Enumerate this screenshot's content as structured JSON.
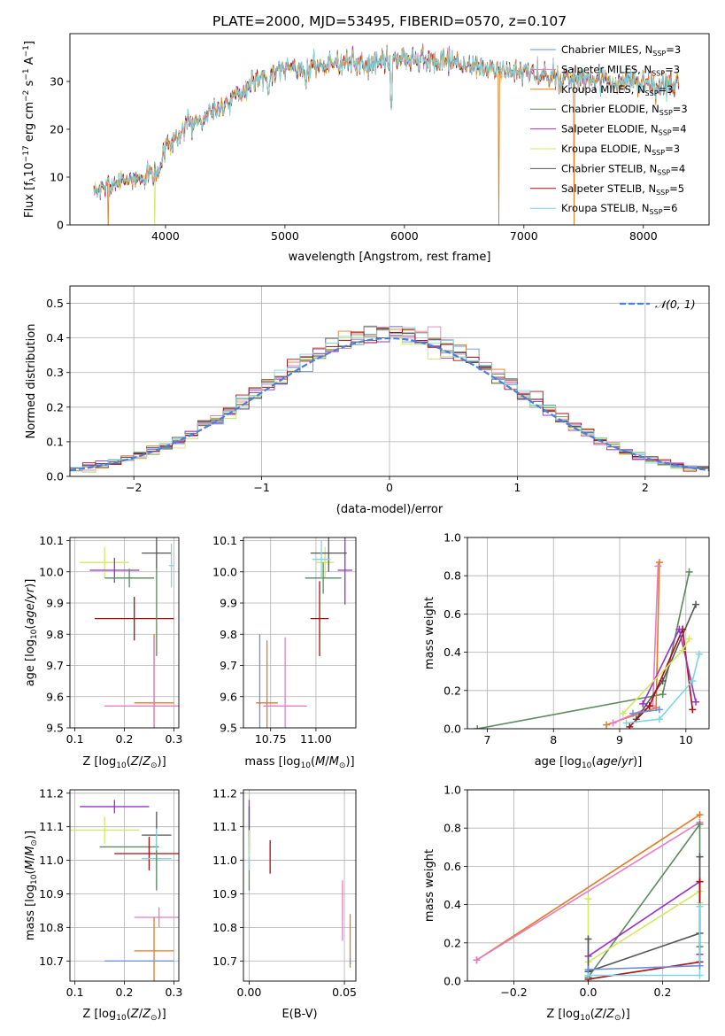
{
  "figure": {
    "title": "PLATE=2000, MJD=53495, FIBERID=0570, z=0.107"
  },
  "colors": {
    "chabrier_miles": "#6a8fdc",
    "salpeter_miles": "#e77cc2",
    "kroupa_miles": "#e07b26",
    "chabrier_elodie": "#5a8a5e",
    "salpeter_elodie": "#9b30c8",
    "kroupa_elodie": "#d3e860",
    "chabrier_stelib": "#555555",
    "salpeter_stelib": "#a80d12",
    "kroupa_stelib": "#7fd6e0",
    "normal_curve": "#4a7fd8",
    "grid": "#b0b0b0"
  },
  "chart_data": [
    {
      "id": "spectrum",
      "type": "line",
      "xlabel": "wavelength [Angstrom, rest frame]",
      "ylabel": "Flux [fλ10^-17 erg cm^-2 s^-1 A^-1]",
      "xlim": [
        3200,
        8550
      ],
      "ylim": [
        0,
        40
      ],
      "xticks": [
        4000,
        5000,
        6000,
        7000,
        8000
      ],
      "yticks": [
        0,
        10,
        20,
        30
      ],
      "grid": false,
      "legend_position": "right",
      "legend": [
        "Chabrier MILES, N_SSP=3",
        "Salpeter MILES, N_SSP=3",
        "Kroupa MILES, N_SSP=3",
        "Chabrier ELODIE, N_SSP=3",
        "Salpeter ELODIE, N_SSP=4",
        "Kroupa ELODIE, N_SSP=3",
        "Chabrier STELIB, N_SSP=4",
        "Salpeter STELIB, N_SSP=5",
        "Kroupa STELIB, N_SSP=6"
      ],
      "series_colors": [
        "chabrier_miles",
        "salpeter_miles",
        "kroupa_miles",
        "chabrier_elodie",
        "salpeter_elodie",
        "kroupa_elodie",
        "chabrier_stelib",
        "salpeter_stelib",
        "kroupa_stelib"
      ],
      "continuum_x": [
        3400,
        3600,
        3800,
        3950,
        4000,
        4200,
        4400,
        4600,
        4800,
        5000,
        5200,
        5500,
        5800,
        6000,
        6300,
        6600,
        6900,
        7200,
        7500,
        7800,
        8100,
        8300
      ],
      "continuum_y": [
        7,
        9,
        10,
        11,
        17,
        21,
        24,
        27,
        31,
        33,
        33,
        34,
        34,
        35,
        34,
        33,
        32,
        31,
        30,
        30,
        29,
        29
      ],
      "features": [
        {
          "x": 3934,
          "y": 13
        },
        {
          "x": 3969,
          "y": 14
        },
        {
          "x": 4101,
          "y": 16
        },
        {
          "x": 4304,
          "y": 20
        },
        {
          "x": 4861,
          "y": 26
        },
        {
          "x": 5175,
          "y": 28
        },
        {
          "x": 5890,
          "y": 24
        },
        {
          "x": 6563,
          "y": 31
        }
      ],
      "drops": [
        {
          "x": 3520,
          "series": 2
        },
        {
          "x": 3910,
          "series": 5
        },
        {
          "x": 6790,
          "series": 2
        },
        {
          "x": 6790,
          "series": 5
        },
        {
          "x": 7420,
          "series": 2
        }
      ]
    },
    {
      "id": "residuals",
      "type": "line",
      "xlabel": "(data-model)/error",
      "ylabel": "Normed distribution",
      "xlim": [
        -2.5,
        2.5
      ],
      "ylim": [
        0,
        0.55
      ],
      "xticks": [
        -2,
        -1,
        0,
        1,
        2
      ],
      "yticks": [
        0.0,
        0.1,
        0.2,
        0.3,
        0.4,
        0.5
      ],
      "grid": true,
      "legend_position": "top-right",
      "legend": [
        "N(0,1)"
      ],
      "series_colors": [
        "chabrier_miles",
        "salpeter_miles",
        "kroupa_miles",
        "chabrier_elodie",
        "salpeter_elodie",
        "kroupa_elodie",
        "chabrier_stelib",
        "salpeter_stelib",
        "kroupa_stelib"
      ],
      "bin_width": 0.1,
      "normal_mean": 0,
      "normal_sigma": 1
    },
    {
      "id": "age_vs_Z",
      "type": "scatter",
      "xlabel": "Z [log10(Z/Z☉)]",
      "ylabel": "age [log10(age/yr)]",
      "xlim": [
        0.09,
        0.31
      ],
      "ylim": [
        9.5,
        10.11
      ],
      "xticks": [
        0.1,
        0.2,
        0.3
      ],
      "yticks": [
        9.5,
        9.6,
        9.7,
        9.8,
        9.9,
        10.0,
        10.1
      ],
      "grid": true,
      "points": [
        {
          "x": 0.16,
          "y": 10.03,
          "xerr": 0.05,
          "yerr": 0.05,
          "c": "kroupa_elodie"
        },
        {
          "x": 0.18,
          "y": 10.005,
          "xerr": 0.05,
          "yerr": 0.04,
          "c": "salpeter_elodie"
        },
        {
          "x": 0.21,
          "y": 9.98,
          "xerr": 0.05,
          "yerr": 0.03,
          "c": "chabrier_elodie"
        },
        {
          "x": 0.265,
          "y": 10.06,
          "xerr": 0.03,
          "yerr": 0.05,
          "c": "chabrier_stelib"
        },
        {
          "x": 0.295,
          "y": 10.02,
          "xerr": 0.005,
          "yerr": 0.07,
          "c": "kroupa_stelib"
        },
        {
          "x": 0.22,
          "y": 9.85,
          "xerr": 0.08,
          "yerr": 0.07,
          "c": "salpeter_stelib"
        },
        {
          "x": 0.26,
          "y": 9.58,
          "xerr": 0.04,
          "yerr": 0.22,
          "c": "kroupa_miles"
        },
        {
          "x": 0.26,
          "y": 9.57,
          "xerr": 0.1,
          "yerr": 0.22,
          "c": "salpeter_miles"
        },
        {
          "x": 0.265,
          "y": 9.87,
          "xerr": 0.0,
          "yerr": 0.14,
          "c": "chabrier_elodie"
        }
      ]
    },
    {
      "id": "age_vs_mass",
      "type": "scatter",
      "xlabel": "mass [log10(M/M☉)]",
      "ylabel": "",
      "xlim": [
        10.6,
        11.22
      ],
      "ylim": [
        9.5,
        10.11
      ],
      "xticks": [
        10.75,
        11.0
      ],
      "xticklabels": [
        "10.75",
        "11.00"
      ],
      "yticks": [
        9.5,
        9.6,
        9.7,
        9.8,
        9.9,
        10.0,
        10.1
      ],
      "grid": true,
      "points": [
        {
          "x": 11.05,
          "y": 10.03,
          "xerr": 0.05,
          "yerr": 0.05,
          "c": "kroupa_elodie"
        },
        {
          "x": 11.16,
          "y": 10.005,
          "xerr": 0.04,
          "yerr": 0.11,
          "c": "salpeter_elodie"
        },
        {
          "x": 11.04,
          "y": 9.98,
          "xerr": 0.1,
          "yerr": 0.05,
          "c": "chabrier_elodie"
        },
        {
          "x": 11.07,
          "y": 10.06,
          "xerr": 0.1,
          "yerr": 0.06,
          "c": "chabrier_stelib"
        },
        {
          "x": 11.03,
          "y": 10.04,
          "xerr": 0.05,
          "yerr": 0.06,
          "c": "kroupa_stelib"
        },
        {
          "x": 11.02,
          "y": 9.85,
          "xerr": 0.05,
          "yerr": 0.12,
          "c": "salpeter_stelib"
        },
        {
          "x": 10.73,
          "y": 9.58,
          "xerr": 0.06,
          "yerr": 0.2,
          "c": "kroupa_miles"
        },
        {
          "x": 10.83,
          "y": 9.57,
          "xerr": 0.12,
          "yerr": 0.22,
          "c": "salpeter_miles"
        },
        {
          "x": 10.69,
          "y": 9.57,
          "xerr": 0.0,
          "yerr": 0.23,
          "c": "chabrier_miles"
        }
      ]
    },
    {
      "id": "weight_vs_age",
      "type": "line",
      "xlabel": "age [log10(age/yr)]",
      "ylabel": "mass weight",
      "xlim": [
        6.7,
        10.35
      ],
      "ylim": [
        0,
        1.0
      ],
      "xticks": [
        7,
        8,
        9,
        10
      ],
      "yticks": [
        0.0,
        0.2,
        0.4,
        0.6,
        0.8,
        1.0
      ],
      "grid": true,
      "series": [
        {
          "c": "chabrier_elodie",
          "x": [
            6.85,
            9.65,
            10.05
          ],
          "y": [
            0.0,
            0.18,
            0.82
          ]
        },
        {
          "c": "kroupa_miles",
          "x": [
            8.8,
            9.55,
            9.6
          ],
          "y": [
            0.02,
            0.11,
            0.87
          ]
        },
        {
          "c": "salpeter_miles",
          "x": [
            8.9,
            9.5,
            9.58
          ],
          "y": [
            0.03,
            0.12,
            0.85
          ]
        },
        {
          "c": "chabrier_stelib",
          "x": [
            9.25,
            9.65,
            10.15
          ],
          "y": [
            0.05,
            0.25,
            0.65
          ]
        },
        {
          "c": "salpeter_stelib",
          "x": [
            9.15,
            9.45,
            9.95,
            10.1
          ],
          "y": [
            0.01,
            0.12,
            0.52,
            0.1
          ]
        },
        {
          "c": "salpeter_elodie",
          "x": [
            9.35,
            9.9,
            10.15
          ],
          "y": [
            0.13,
            0.52,
            0.14
          ]
        },
        {
          "c": "kroupa_elodie",
          "x": [
            9.05,
            9.95,
            10.05
          ],
          "y": [
            0.08,
            0.41,
            0.47
          ]
        },
        {
          "c": "kroupa_stelib",
          "x": [
            9.1,
            9.6,
            10.1,
            10.2
          ],
          "y": [
            0.03,
            0.05,
            0.25,
            0.39
          ]
        },
        {
          "c": "chabrier_miles",
          "x": [
            9.2,
            9.6
          ],
          "y": [
            0.08,
            0.1
          ]
        }
      ]
    },
    {
      "id": "mass_vs_Z",
      "type": "scatter",
      "xlabel": "Z [log10(Z/Z☉)]",
      "ylabel": "mass [log10(M/M☉)]",
      "xlim": [
        0.09,
        0.31
      ],
      "ylim": [
        10.64,
        11.21
      ],
      "xticks": [
        0.1,
        0.2,
        0.3
      ],
      "yticks": [
        10.7,
        10.8,
        10.9,
        11.0,
        11.1,
        11.2
      ],
      "grid": true,
      "points": [
        {
          "x": 0.18,
          "y": 11.16,
          "xerr": 0.07,
          "yerr": 0.02,
          "c": "salpeter_elodie"
        },
        {
          "x": 0.16,
          "y": 11.09,
          "xerr": 0.07,
          "yerr": 0.04,
          "c": "kroupa_elodie"
        },
        {
          "x": 0.265,
          "y": 11.075,
          "xerr": 0.03,
          "yerr": 0.07,
          "c": "chabrier_stelib"
        },
        {
          "x": 0.21,
          "y": 11.04,
          "xerr": 0.06,
          "yerr": 0.0,
          "c": "chabrier_elodie"
        },
        {
          "x": 0.25,
          "y": 11.02,
          "xerr": 0.07,
          "yerr": 0.05,
          "c": "salpeter_stelib"
        },
        {
          "x": 0.265,
          "y": 11.005,
          "xerr": 0.03,
          "yerr": 0.09,
          "c": "kroupa_stelib"
        },
        {
          "x": 0.265,
          "y": 10.97,
          "xerr": 0.0,
          "yerr": 0.06,
          "c": "chabrier_elodie"
        },
        {
          "x": 0.27,
          "y": 10.83,
          "xerr": 0.05,
          "yerr": 0.03,
          "c": "salpeter_miles"
        },
        {
          "x": 0.26,
          "y": 10.73,
          "xerr": 0.04,
          "yerr": 0.1,
          "c": "kroupa_miles"
        },
        {
          "x": 0.23,
          "y": 10.7,
          "xerr": 0.07,
          "yerr": 0.0,
          "c": "chabrier_miles"
        }
      ]
    },
    {
      "id": "mass_vs_ebv",
      "type": "scatter",
      "xlabel": "E(B-V)",
      "ylabel": "",
      "xlim": [
        -0.003,
        0.056
      ],
      "ylim": [
        10.64,
        11.21
      ],
      "xticks": [
        0.0,
        0.05
      ],
      "xticklabels": [
        "0.00",
        "0.05"
      ],
      "yticks": [
        10.7,
        10.8,
        10.9,
        11.0,
        11.1,
        11.2
      ],
      "grid": true,
      "points": [
        {
          "x": 0.0,
          "y": 11.1,
          "xerr": 0,
          "yerr": 0.08,
          "c": "salpeter_elodie"
        },
        {
          "x": 0.0,
          "y": 11.1,
          "xerr": 0,
          "yerr": 0.06,
          "c": "chabrier_stelib"
        },
        {
          "x": 0.0,
          "y": 11.0,
          "xerr": 0,
          "yerr": 0.09,
          "c": "chabrier_elodie"
        },
        {
          "x": 0.0,
          "y": 11.02,
          "xerr": 0,
          "yerr": 0.05,
          "c": "kroupa_stelib"
        },
        {
          "x": 0.0,
          "y": 11.05,
          "xerr": 0,
          "yerr": 0.04,
          "c": "kroupa_elodie"
        },
        {
          "x": 0.011,
          "y": 11.01,
          "xerr": 0,
          "yerr": 0.05,
          "c": "salpeter_stelib"
        },
        {
          "x": 0.049,
          "y": 10.85,
          "xerr": 0,
          "yerr": 0.09,
          "c": "salpeter_miles"
        },
        {
          "x": 0.053,
          "y": 10.76,
          "xerr": 0,
          "yerr": 0.08,
          "c": "kroupa_miles"
        },
        {
          "x": 0.053,
          "y": 10.7,
          "xerr": 0,
          "yerr": 0.01,
          "c": "chabrier_miles"
        }
      ]
    },
    {
      "id": "weight_vs_Z",
      "type": "line",
      "xlabel": "Z [log10(Z/Z☉)]",
      "ylabel": "mass weight",
      "xlim": [
        -0.325,
        0.325
      ],
      "ylim": [
        0,
        1.0
      ],
      "xticks": [
        -0.2,
        0.0,
        0.2
      ],
      "xticklabels": [
        "−0.2",
        "0.0",
        "0.2"
      ],
      "yticks": [
        0.0,
        0.2,
        0.4,
        0.6,
        0.8,
        1.0
      ],
      "grid": true,
      "series": [
        {
          "c": "kroupa_miles",
          "x": [
            -0.3,
            0.3
          ],
          "y": [
            0.11,
            0.87
          ]
        },
        {
          "c": "salpeter_miles",
          "x": [
            -0.3,
            0.3
          ],
          "y": [
            0.11,
            0.83
          ]
        },
        {
          "c": "chabrier_elodie",
          "x": [
            0.0,
            0.3,
            0.3
          ],
          "y": [
            0.02,
            0.82,
            0.18
          ]
        },
        {
          "c": "salpeter_elodie",
          "x": [
            0.0,
            0.3,
            0.3
          ],
          "y": [
            0.13,
            0.52,
            0.14
          ]
        },
        {
          "c": "kroupa_elodie",
          "x": [
            0.0,
            0.0,
            0.3,
            0.3
          ],
          "y": [
            0.43,
            0.1,
            0.47,
            0.41
          ]
        },
        {
          "c": "chabrier_stelib",
          "x": [
            0.0,
            0.0,
            0.3,
            0.3
          ],
          "y": [
            0.22,
            0.05,
            0.25,
            0.65
          ]
        },
        {
          "c": "salpeter_stelib",
          "x": [
            0.0,
            0.3,
            0.3
          ],
          "y": [
            0.01,
            0.1,
            0.52
          ]
        },
        {
          "c": "kroupa_stelib",
          "x": [
            0.0,
            0.3,
            0.3
          ],
          "y": [
            0.03,
            0.03,
            0.39
          ]
        },
        {
          "c": "chabrier_miles",
          "x": [
            0.0,
            0.3
          ],
          "y": [
            0.06,
            0.08
          ]
        }
      ]
    }
  ]
}
